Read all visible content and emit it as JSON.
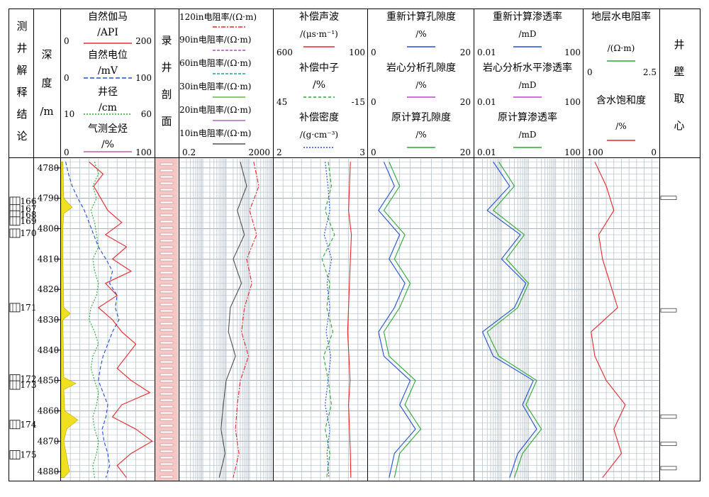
{
  "headers": {
    "interpretation": [
      "测",
      "井",
      "解",
      "释",
      "结",
      "论"
    ],
    "depth": [
      "深",
      "度",
      "/m"
    ],
    "lithology": [
      "录",
      "井",
      "剖",
      "面"
    ],
    "coring": [
      "井",
      "壁",
      "取",
      "心"
    ]
  },
  "tracks": [
    {
      "curves": [
        {
          "name": "自然伽马",
          "unit": "/API",
          "min": "0",
          "max": "200",
          "color": "#e8262a",
          "dash": "solid"
        },
        {
          "name": "自然电位",
          "unit": "/mV",
          "min": "0",
          "max": "100",
          "color": "#1f4fd6",
          "dash": "dash"
        },
        {
          "name": "井径",
          "unit": "/cm",
          "min": "10",
          "max": "60",
          "color": "#2aa832",
          "dash": "dot"
        },
        {
          "name": "气测全烃",
          "unit": "/%",
          "min": "0",
          "max": "100",
          "color": "#c060a0",
          "dash": "solid"
        }
      ]
    },
    {
      "curves": [
        {
          "name": "120in电阻率/(Ω·m)",
          "color": "#e8262a",
          "dash": "dashdot"
        },
        {
          "name": "90in电阻率/(Ω·m)",
          "color": "#c040d0",
          "dash": "dash"
        },
        {
          "name": "60in电阻率/(Ω·m)",
          "color": "#20a090",
          "dash": "dash"
        },
        {
          "name": "30in电阻率/(Ω·m)",
          "color": "#60b848",
          "dash": "solid"
        },
        {
          "name": "20in电阻率/(Ω·m)",
          "color": "#b060c8",
          "dash": "solid"
        },
        {
          "name": "10in电阻率/(Ω·m)",
          "color": "#505050",
          "dash": "solid"
        }
      ],
      "min": "0.2",
      "max": "2000"
    },
    {
      "curves": [
        {
          "name": "补偿声波",
          "unit": "/(μs·m⁻¹)",
          "min": "600",
          "max": "100",
          "color": "#e8262a",
          "dash": "solid"
        },
        {
          "name": "补偿中子",
          "unit": "/%",
          "min": "45",
          "max": "-15",
          "color": "#2aa832",
          "dash": "dash"
        },
        {
          "name": "补偿密度",
          "unit": "/(g·cm⁻³)",
          "min": "2",
          "max": "3",
          "color": "#1f4fd6",
          "dash": "dot"
        }
      ]
    },
    {
      "curves": [
        {
          "name": "重新计算孔隙度",
          "unit": "/%",
          "min": "0",
          "max": "20",
          "color": "#1f4fd6",
          "dash": "solid"
        },
        {
          "name": "岩心分析孔隙度",
          "unit": "/%",
          "min": "0",
          "max": "20",
          "color": "#c040d0",
          "dash": "solid"
        },
        {
          "name": "原计算孔隙度",
          "unit": "/%",
          "min": "0",
          "max": "20",
          "color": "#2aa832",
          "dash": "solid"
        }
      ]
    },
    {
      "curves": [
        {
          "name": "重新计算渗透率",
          "unit": "/mD",
          "min": "0.01",
          "max": "100",
          "color": "#1f4fd6",
          "dash": "solid"
        },
        {
          "name": "岩心分析水平渗透率",
          "unit": "/mD",
          "min": "0.01",
          "max": "100",
          "color": "#c040d0",
          "dash": "solid"
        },
        {
          "name": "原计算渗透率",
          "unit": "/mD",
          "min": "0.01",
          "max": "100",
          "color": "#2aa832",
          "dash": "solid"
        }
      ]
    },
    {
      "curves": [
        {
          "name": "地层水电阻率",
          "unit": "/(Ω·m)",
          "min": "0",
          "max": "2.5",
          "color": "#2aa832",
          "dash": "solid"
        },
        {
          "name": "含水饱和度",
          "unit": "/%",
          "min": "100",
          "max": "0",
          "color": "#e8262a",
          "dash": "solid"
        }
      ]
    }
  ],
  "chart_data": {
    "type": "well_log",
    "depth_range": [
      4777,
      4883
    ],
    "depth_ticks": [
      4780,
      4790,
      4800,
      4810,
      4820,
      4830,
      4840,
      4850,
      4860,
      4870,
      4880
    ],
    "depth_unit": "m",
    "layers": [
      {
        "label": "166",
        "depth": 4791
      },
      {
        "label": "167",
        "depth": 4793.5
      },
      {
        "label": "168",
        "depth": 4795.5
      },
      {
        "label": "169",
        "depth": 4797.5
      },
      {
        "label": "170",
        "depth": 4801.5
      },
      {
        "label": "171",
        "depth": 4826
      },
      {
        "label": "172",
        "depth": 4849.5
      },
      {
        "label": "173",
        "depth": 4851.5
      },
      {
        "label": "174",
        "depth": 4864.5
      },
      {
        "label": "175",
        "depth": 4874.5
      }
    ],
    "series": [
      {
        "name": "自然伽马",
        "depth": [
          4778,
          4782,
          4786,
          4790,
          4794,
          4798,
          4802,
          4806,
          4810,
          4814,
          4818,
          4822,
          4826,
          4830,
          4834,
          4838,
          4842,
          4846,
          4850,
          4854,
          4858,
          4862,
          4866,
          4870,
          4874,
          4878,
          4882
        ],
        "values": [
          60,
          90,
          70,
          85,
          100,
          130,
          95,
          140,
          110,
          150,
          95,
          120,
          80,
          110,
          130,
          160,
          140,
          120,
          150,
          190,
          130,
          110,
          160,
          195,
          150,
          120,
          140
        ]
      },
      {
        "name": "自然电位",
        "depth": [
          4778,
          4782,
          4786,
          4790,
          4794,
          4798,
          4802,
          4806,
          4810,
          4814,
          4818,
          4822,
          4826,
          4830,
          4834,
          4838,
          4842,
          4846,
          4850,
          4854,
          4858,
          4862,
          4866,
          4870,
          4874,
          4878,
          4882
        ],
        "values": [
          5,
          8,
          12,
          18,
          25,
          30,
          35,
          40,
          48,
          55,
          52,
          60,
          58,
          62,
          55,
          50,
          45,
          42,
          40,
          45,
          50,
          48,
          44,
          46,
          50,
          52,
          48
        ]
      },
      {
        "name": "井径",
        "depth": [
          4778,
          4782,
          4786,
          4790,
          4794,
          4798,
          4802,
          4806,
          4810,
          4814,
          4818,
          4822,
          4826,
          4830,
          4834,
          4838,
          4842,
          4846,
          4850,
          4854,
          4858,
          4862,
          4866,
          4870,
          4874,
          4878,
          4882
        ],
        "values": [
          28,
          30,
          27,
          29,
          26,
          28,
          29,
          30,
          27,
          28,
          30,
          29,
          26,
          25,
          28,
          30,
          27,
          26,
          28,
          30,
          29,
          27,
          28,
          30,
          29,
          27,
          28
        ]
      },
      {
        "name": "气测全烃",
        "depth": [
          4778,
          4790,
          4793,
          4795,
          4800,
          4810,
          4826,
          4828,
          4830,
          4849,
          4851,
          4853,
          4860,
          4863,
          4866,
          4870,
          4880,
          4882
        ],
        "values": [
          2,
          3,
          12,
          3,
          2,
          2,
          3,
          10,
          2,
          3,
          16,
          3,
          4,
          18,
          6,
          3,
          9,
          3
        ]
      },
      {
        "name": "10in电阻率",
        "depth": [
          4778,
          4786,
          4794,
          4802,
          4810,
          4818,
          4826,
          4834,
          4842,
          4850,
          4858,
          4866,
          4874,
          4882
        ],
        "values": [
          80,
          150,
          60,
          120,
          40,
          90,
          30,
          25,
          50,
          20,
          15,
          12,
          18,
          10
        ]
      },
      {
        "name": "120in电阻率",
        "depth": [
          4778,
          4786,
          4794,
          4802,
          4810,
          4818,
          4826,
          4834,
          4842,
          4850,
          4858,
          4866,
          4874,
          4882
        ],
        "values": [
          300,
          500,
          200,
          400,
          150,
          250,
          120,
          90,
          180,
          80,
          60,
          50,
          70,
          40
        ]
      },
      {
        "name": "补偿声波",
        "depth": [
          4778,
          4786,
          4794,
          4802,
          4810,
          4818,
          4826,
          4834,
          4842,
          4850,
          4858,
          4866,
          4874,
          4882
        ],
        "values": [
          190,
          195,
          200,
          185,
          190,
          195,
          200,
          205,
          198,
          192,
          200,
          195,
          190,
          188
        ]
      },
      {
        "name": "补偿中子",
        "depth": [
          4778,
          4786,
          4794,
          4802,
          4810,
          4818,
          4826,
          4834,
          4842,
          4850,
          4858,
          4866,
          4874,
          4882
        ],
        "values": [
          10,
          8,
          12,
          6,
          14,
          9,
          11,
          7,
          13,
          10,
          8,
          12,
          9,
          11
        ]
      },
      {
        "name": "补偿密度",
        "depth": [
          4778,
          4786,
          4794,
          4802,
          4810,
          4818,
          4826,
          4834,
          4842,
          4850,
          4858,
          4866,
          4874,
          4882
        ],
        "values": [
          2.55,
          2.58,
          2.6,
          2.54,
          2.62,
          2.57,
          2.6,
          2.56,
          2.61,
          2.58,
          2.55,
          2.6,
          2.57,
          2.59
        ]
      },
      {
        "name": "重新计算孔隙度",
        "depth": [
          4778,
          4786,
          4794,
          4802,
          4810,
          4818,
          4826,
          4834,
          4842,
          4850,
          4858,
          4866,
          4874,
          4882
        ],
        "values": [
          3,
          5,
          2,
          6,
          4,
          7,
          5,
          2,
          3,
          8,
          6,
          9,
          5,
          4
        ]
      },
      {
        "name": "原计算孔隙度",
        "depth": [
          4778,
          4786,
          4794,
          4802,
          4810,
          4818,
          4826,
          4834,
          4842,
          4850,
          4858,
          4866,
          4874,
          4882
        ],
        "values": [
          4,
          6,
          3,
          7,
          5,
          8,
          6,
          3,
          4,
          9,
          7,
          10,
          6,
          5
        ]
      },
      {
        "name": "重新计算渗透率",
        "depth": [
          4778,
          4786,
          4794,
          4802,
          4810,
          4818,
          4826,
          4834,
          4842,
          4850,
          4858,
          4866,
          4874,
          4882
        ],
        "values": [
          0.05,
          0.2,
          0.03,
          0.5,
          0.1,
          0.8,
          0.3,
          0.02,
          0.05,
          1.5,
          0.6,
          2,
          0.4,
          0.2
        ]
      },
      {
        "name": "原计算渗透率",
        "depth": [
          4778,
          4786,
          4794,
          4802,
          4810,
          4818,
          4826,
          4834,
          4842,
          4850,
          4858,
          4866,
          4874,
          4882
        ],
        "values": [
          0.08,
          0.3,
          0.05,
          0.7,
          0.15,
          1.0,
          0.4,
          0.03,
          0.08,
          2,
          0.8,
          3,
          0.6,
          0.3
        ]
      },
      {
        "name": "含水饱和度",
        "depth": [
          4778,
          4786,
          4794,
          4802,
          4810,
          4818,
          4826,
          4834,
          4842,
          4850,
          4858,
          4866,
          4874,
          4882
        ],
        "values": [
          85,
          70,
          60,
          80,
          75,
          65,
          55,
          90,
          85,
          70,
          45,
          60,
          50,
          75
        ]
      }
    ]
  }
}
